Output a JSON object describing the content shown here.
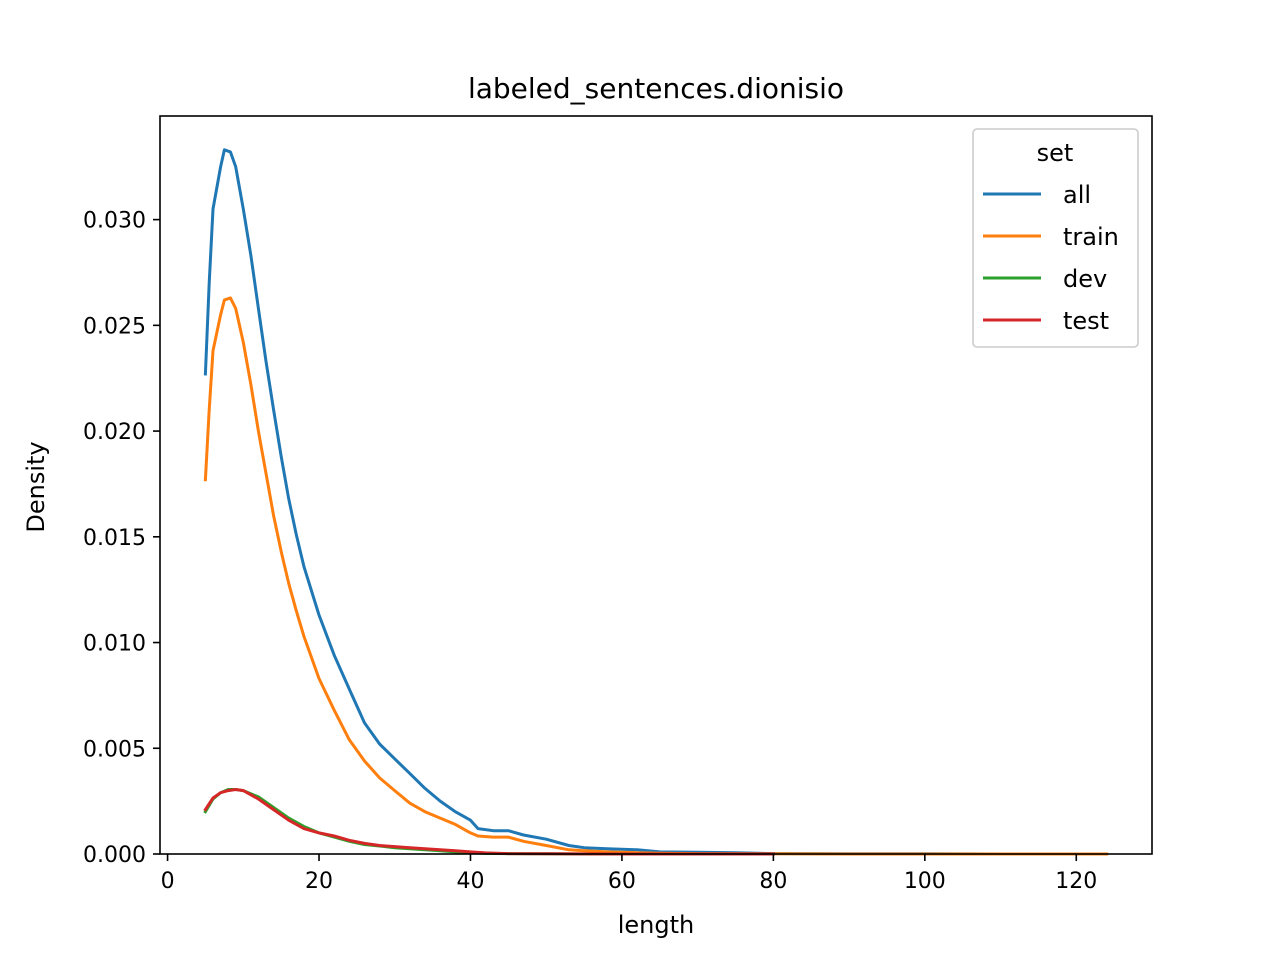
{
  "chart_data": {
    "type": "line",
    "title": "labeled_sentences.dionisio",
    "xlabel": "length",
    "ylabel": "Density",
    "xlim": [
      -1,
      130
    ],
    "ylim": [
      0,
      0.0349
    ],
    "x_ticks": [
      0,
      20,
      40,
      60,
      80,
      100,
      120
    ],
    "y_ticks": [
      0.0,
      0.005,
      0.01,
      0.015,
      0.02,
      0.025,
      0.03
    ],
    "x_tick_labels": [
      "0",
      "20",
      "40",
      "60",
      "80",
      "100",
      "120"
    ],
    "y_tick_labels": [
      "0.000",
      "0.005",
      "0.010",
      "0.015",
      "0.020",
      "0.025",
      "0.030"
    ],
    "grid": false,
    "legend": {
      "title": "set",
      "placement": "top-right"
    },
    "series": [
      {
        "name": "all",
        "color": "#1f77b4",
        "points": [
          [
            5,
            0.0227
          ],
          [
            5.5,
            0.027
          ],
          [
            6,
            0.0305
          ],
          [
            7,
            0.0325
          ],
          [
            7.5,
            0.0333
          ],
          [
            8.3,
            0.0332
          ],
          [
            9,
            0.0325
          ],
          [
            10,
            0.0305
          ],
          [
            11,
            0.0283
          ],
          [
            12,
            0.0258
          ],
          [
            13,
            0.0233
          ],
          [
            14,
            0.021
          ],
          [
            15,
            0.0188
          ],
          [
            16,
            0.0168
          ],
          [
            17,
            0.0151
          ],
          [
            18,
            0.0136
          ],
          [
            20,
            0.0113
          ],
          [
            22,
            0.0094
          ],
          [
            24,
            0.0078
          ],
          [
            26,
            0.0062
          ],
          [
            28,
            0.0052
          ],
          [
            30,
            0.0045
          ],
          [
            32,
            0.0038
          ],
          [
            34,
            0.0031
          ],
          [
            36,
            0.0025
          ],
          [
            38,
            0.002
          ],
          [
            40,
            0.0016
          ],
          [
            41,
            0.0012
          ],
          [
            43,
            0.0011
          ],
          [
            45,
            0.0011
          ],
          [
            47,
            0.0009
          ],
          [
            50,
            0.0007
          ],
          [
            53,
            0.0004
          ],
          [
            55,
            0.0003
          ],
          [
            58,
            0.00025
          ],
          [
            62,
            0.0002
          ],
          [
            65,
            0.0001
          ],
          [
            70,
            8e-05
          ],
          [
            75,
            6e-05
          ],
          [
            80,
            2e-05
          ],
          [
            90,
            1e-05
          ],
          [
            100,
            1e-05
          ],
          [
            110,
            0.0
          ],
          [
            124,
            0.0
          ]
        ]
      },
      {
        "name": "train",
        "color": "#ff7f0e",
        "points": [
          [
            5,
            0.0177
          ],
          [
            5.5,
            0.021
          ],
          [
            6,
            0.0238
          ],
          [
            7,
            0.0255
          ],
          [
            7.5,
            0.0262
          ],
          [
            8.3,
            0.0263
          ],
          [
            9,
            0.0258
          ],
          [
            10,
            0.0242
          ],
          [
            11,
            0.0222
          ],
          [
            12,
            0.02
          ],
          [
            13,
            0.018
          ],
          [
            14,
            0.016
          ],
          [
            15,
            0.0143
          ],
          [
            16,
            0.0128
          ],
          [
            17,
            0.0115
          ],
          [
            18,
            0.0103
          ],
          [
            20,
            0.0083
          ],
          [
            22,
            0.0068
          ],
          [
            24,
            0.0054
          ],
          [
            26,
            0.0044
          ],
          [
            28,
            0.0036
          ],
          [
            30,
            0.003
          ],
          [
            32,
            0.0024
          ],
          [
            34,
            0.002
          ],
          [
            36,
            0.0017
          ],
          [
            38,
            0.0014
          ],
          [
            40,
            0.001
          ],
          [
            41,
            0.00085
          ],
          [
            43,
            0.0008
          ],
          [
            45,
            0.0008
          ],
          [
            47,
            0.0006
          ],
          [
            50,
            0.0004
          ],
          [
            53,
            0.0002
          ],
          [
            55,
            0.00015
          ],
          [
            58,
            0.0001
          ],
          [
            62,
            6e-05
          ],
          [
            65,
            4e-05
          ],
          [
            70,
            2e-05
          ],
          [
            80,
            1e-05
          ],
          [
            90,
            0.0
          ],
          [
            124,
            0.0
          ]
        ]
      },
      {
        "name": "dev",
        "color": "#2ca02c",
        "points": [
          [
            5,
            0.002
          ],
          [
            6,
            0.0026
          ],
          [
            7,
            0.0029
          ],
          [
            8,
            0.00305
          ],
          [
            9,
            0.00305
          ],
          [
            10,
            0.003
          ],
          [
            12,
            0.0027
          ],
          [
            14,
            0.0022
          ],
          [
            16,
            0.0017
          ],
          [
            18,
            0.0013
          ],
          [
            20,
            0.001
          ],
          [
            22,
            0.0008
          ],
          [
            24,
            0.0006
          ],
          [
            26,
            0.00045
          ],
          [
            28,
            0.00038
          ],
          [
            30,
            0.0003
          ],
          [
            32,
            0.00025
          ],
          [
            34,
            0.0002
          ],
          [
            36,
            0.00015
          ],
          [
            38,
            0.0001
          ],
          [
            40,
            6e-05
          ],
          [
            42,
            3e-05
          ],
          [
            45,
            2e-05
          ],
          [
            50,
            1e-05
          ],
          [
            55,
            0.0
          ],
          [
            80,
            0.0
          ]
        ]
      },
      {
        "name": "test",
        "color": "#d62728",
        "points": [
          [
            5,
            0.0021
          ],
          [
            6,
            0.00265
          ],
          [
            7,
            0.0029
          ],
          [
            8,
            0.003
          ],
          [
            9,
            0.00305
          ],
          [
            10,
            0.003
          ],
          [
            12,
            0.0026
          ],
          [
            14,
            0.0021
          ],
          [
            16,
            0.0016
          ],
          [
            18,
            0.0012
          ],
          [
            20,
            0.001
          ],
          [
            22,
            0.00085
          ],
          [
            24,
            0.00065
          ],
          [
            26,
            0.0005
          ],
          [
            28,
            0.0004
          ],
          [
            30,
            0.00035
          ],
          [
            32,
            0.0003
          ],
          [
            34,
            0.00025
          ],
          [
            36,
            0.0002
          ],
          [
            38,
            0.00015
          ],
          [
            40,
            0.0001
          ],
          [
            42,
            5e-05
          ],
          [
            45,
            2e-05
          ],
          [
            50,
            1e-05
          ],
          [
            60,
            0.0
          ],
          [
            80,
            0.0
          ]
        ]
      }
    ]
  }
}
